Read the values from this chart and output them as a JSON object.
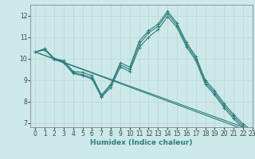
{
  "title": "",
  "xlabel": "Humidex (Indice chaleur)",
  "bg_color": "#cce8e8",
  "grid_color": "#c0d8d8",
  "line_color": "#2e7d7d",
  "xlim": [
    -0.5,
    23
  ],
  "ylim": [
    6.8,
    12.5
  ],
  "yticks": [
    7,
    8,
    9,
    10,
    11,
    12
  ],
  "xticks": [
    0,
    1,
    2,
    3,
    4,
    5,
    6,
    7,
    8,
    9,
    10,
    11,
    12,
    13,
    14,
    15,
    16,
    17,
    18,
    19,
    20,
    21,
    22,
    23
  ],
  "lines": [
    {
      "x": [
        0,
        1,
        2,
        3,
        4,
        5,
        6,
        7,
        8,
        9,
        10,
        11,
        12,
        13,
        14,
        15,
        16,
        17,
        18,
        19,
        20,
        21,
        22,
        23
      ],
      "y": [
        10.3,
        10.45,
        10.0,
        9.9,
        9.4,
        9.35,
        9.2,
        8.3,
        8.8,
        9.8,
        9.6,
        10.8,
        11.3,
        11.6,
        12.2,
        11.65,
        10.75,
        10.1,
        9.0,
        8.5,
        7.9,
        7.4,
        6.95,
        6.65
      ],
      "has_markers": true
    },
    {
      "x": [
        0,
        1,
        2,
        3,
        4,
        5,
        6,
        7,
        8,
        9,
        10,
        11,
        12,
        13,
        14,
        15,
        16,
        17,
        18,
        19,
        20,
        21,
        22,
        23
      ],
      "y": [
        10.3,
        10.45,
        10.0,
        9.85,
        9.35,
        9.25,
        9.1,
        8.25,
        8.75,
        9.7,
        9.5,
        10.65,
        11.2,
        11.5,
        12.1,
        11.55,
        10.65,
        10.0,
        8.9,
        8.4,
        7.8,
        7.3,
        6.85,
        6.55
      ],
      "has_markers": true
    },
    {
      "x": [
        0,
        1,
        2,
        3,
        4,
        5,
        6,
        7,
        8,
        9,
        10,
        11,
        12,
        13,
        14,
        15,
        16,
        17,
        18,
        19,
        20,
        21,
        22,
        23
      ],
      "y": [
        10.3,
        10.4,
        9.95,
        9.8,
        9.3,
        9.2,
        9.05,
        8.2,
        8.65,
        9.6,
        9.4,
        10.5,
        11.0,
        11.35,
        11.95,
        11.45,
        10.55,
        9.9,
        8.8,
        8.3,
        7.7,
        7.2,
        6.75,
        6.45
      ],
      "has_markers": true
    },
    {
      "x": [
        0,
        23
      ],
      "y": [
        10.3,
        6.55
      ],
      "has_markers": false
    },
    {
      "x": [
        0,
        23
      ],
      "y": [
        10.3,
        6.65
      ],
      "has_markers": false
    }
  ],
  "tick_fontsize": 5.5,
  "xlabel_fontsize": 6.5,
  "xlabel_color": "#2e7d7d",
  "tick_color": "#444444"
}
